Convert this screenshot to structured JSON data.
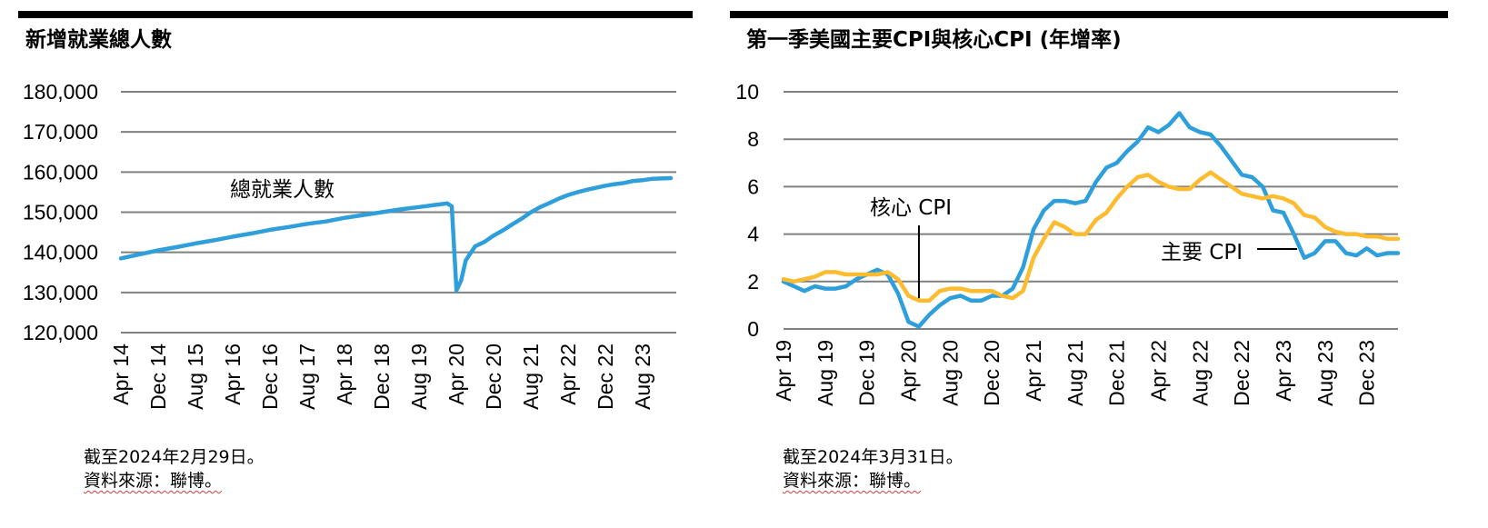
{
  "charts": {
    "left": {
      "title": "新增就業總人數",
      "note_date": "截至2024年2月29日。",
      "note_source": "資料來源：聯博。"
    },
    "right": {
      "title": "第一季美國主要CPI與核心CPI (年增率)",
      "note_date": "截至2024年3月31日。",
      "note_source": "資料來源：聯博。"
    }
  },
  "colors": {
    "blue": "#2E9FDB",
    "orange": "#FDBB2F",
    "grid": "#808080",
    "bar": "#000000"
  },
  "chart_data": [
    {
      "type": "line",
      "title": "新增就業總人數",
      "ylim": [
        120000,
        180000
      ],
      "yticks": [
        120000,
        130000,
        140000,
        150000,
        160000,
        170000,
        180000
      ],
      "ytick_labels": [
        "120,000",
        "130,000",
        "140,000",
        "150,000",
        "160,000",
        "170,000",
        "180,000"
      ],
      "xtick_labels": [
        "Apr 14",
        "Dec 14",
        "Aug 15",
        "Apr 16",
        "Dec 16",
        "Aug 17",
        "Apr 18",
        "Dec 18",
        "Aug 19",
        "Apr 20",
        "Dec 20",
        "Aug 21",
        "Apr 22",
        "Dec 22",
        "Aug 23"
      ],
      "xtick_months": [
        0,
        8,
        16,
        24,
        32,
        40,
        48,
        56,
        64,
        72,
        80,
        88,
        96,
        104,
        112
      ],
      "x_range_months": [
        0,
        118
      ],
      "grid": true,
      "series": [
        {
          "name": "總就業人數",
          "color": "#2E9FDB",
          "x_months": [
            0,
            4,
            8,
            12,
            16,
            20,
            24,
            28,
            32,
            36,
            40,
            44,
            48,
            52,
            56,
            60,
            64,
            68,
            70,
            71,
            72,
            73,
            74,
            76,
            78,
            80,
            82,
            84,
            86,
            88,
            90,
            92,
            94,
            96,
            98,
            100,
            102,
            104,
            106,
            108,
            110,
            112,
            114,
            116,
            118
          ],
          "values": [
            138500,
            139500,
            140500,
            141300,
            142200,
            143000,
            143900,
            144700,
            145600,
            146300,
            147100,
            147700,
            148600,
            149300,
            150000,
            150700,
            151300,
            151900,
            152200,
            151500,
            130500,
            133000,
            138000,
            141500,
            142600,
            144200,
            145500,
            147000,
            148400,
            150000,
            151300,
            152300,
            153400,
            154300,
            155000,
            155600,
            156100,
            156600,
            157000,
            157300,
            157800,
            158000,
            158300,
            158400,
            158500
          ]
        }
      ],
      "annotations": [
        {
          "text": "總就業人數"
        }
      ]
    },
    {
      "type": "line",
      "title": "第一季美國主要CPI與核心CPI (年增率)",
      "ylim": [
        0,
        10
      ],
      "yticks": [
        0,
        2,
        4,
        6,
        8,
        10
      ],
      "ytick_labels": [
        "0",
        "2",
        "4",
        "6",
        "8",
        "10"
      ],
      "xtick_labels": [
        "Apr 19",
        "Aug 19",
        "Dec 19",
        "Apr 20",
        "Aug 20",
        "Dec 20",
        "Apr 21",
        "Aug 21",
        "Dec 21",
        "Apr 22",
        "Aug 22",
        "Dec 22",
        "Apr 23",
        "Aug 23",
        "Dec 23"
      ],
      "xtick_months": [
        0,
        4,
        8,
        12,
        16,
        20,
        24,
        28,
        32,
        36,
        40,
        44,
        48,
        52,
        56
      ],
      "x_range_months": [
        0,
        59
      ],
      "grid": true,
      "series": [
        {
          "name": "主要 CPI",
          "color": "#2E9FDB",
          "values": [
            2.0,
            1.8,
            1.6,
            1.8,
            1.7,
            1.7,
            1.8,
            2.1,
            2.3,
            2.5,
            2.3,
            1.5,
            0.3,
            0.1,
            0.6,
            1.0,
            1.3,
            1.4,
            1.2,
            1.2,
            1.4,
            1.4,
            1.7,
            2.6,
            4.2,
            5.0,
            5.4,
            5.4,
            5.3,
            5.4,
            6.2,
            6.8,
            7.0,
            7.5,
            7.9,
            8.5,
            8.3,
            8.6,
            9.1,
            8.5,
            8.3,
            8.2,
            7.7,
            7.1,
            6.5,
            6.4,
            6.0,
            5.0,
            4.9,
            4.0,
            3.0,
            3.2,
            3.7,
            3.7,
            3.2,
            3.1,
            3.4,
            3.1,
            3.2,
            3.2
          ]
        },
        {
          "name": "核心 CPI",
          "color": "#FDBB2F",
          "values": [
            2.1,
            2.0,
            2.1,
            2.2,
            2.4,
            2.4,
            2.3,
            2.3,
            2.3,
            2.3,
            2.4,
            2.1,
            1.4,
            1.2,
            1.2,
            1.6,
            1.7,
            1.7,
            1.6,
            1.6,
            1.6,
            1.4,
            1.3,
            1.6,
            3.0,
            3.8,
            4.5,
            4.3,
            4.0,
            4.0,
            4.6,
            4.9,
            5.5,
            6.0,
            6.4,
            6.5,
            6.2,
            6.0,
            5.9,
            5.9,
            6.3,
            6.6,
            6.3,
            6.0,
            5.7,
            5.6,
            5.5,
            5.6,
            5.5,
            5.3,
            4.8,
            4.7,
            4.3,
            4.1,
            4.0,
            4.0,
            3.9,
            3.9,
            3.8,
            3.8
          ]
        }
      ],
      "annotations": [
        {
          "text": "核心 CPI"
        },
        {
          "text": "主要 CPI"
        }
      ]
    }
  ]
}
